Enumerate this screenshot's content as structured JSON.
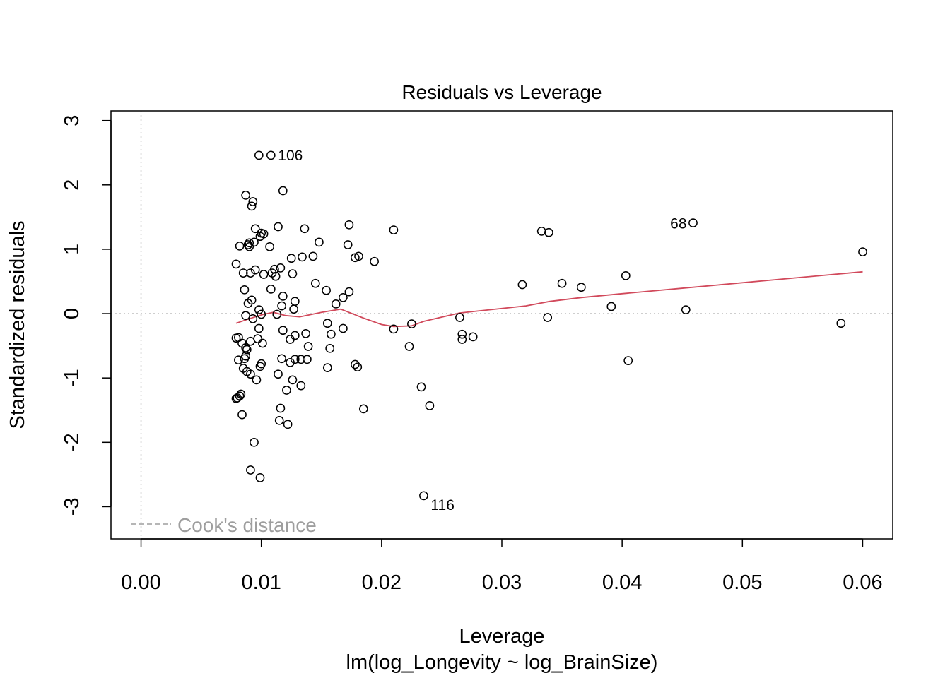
{
  "chart_data": {
    "type": "scatter",
    "title": "Residuals vs Leverage",
    "xlabel": "Leverage",
    "subtitle": "lm(log_Longevity ~ log_BrainSize)",
    "ylabel": "Standardized residuals",
    "xlim": [
      -0.0025,
      0.0625
    ],
    "ylim": [
      -3.5,
      3.15
    ],
    "x_ticks": [
      0.0,
      0.01,
      0.02,
      0.03,
      0.04,
      0.05,
      0.06
    ],
    "x_tick_labels": [
      "0.00",
      "0.01",
      "0.02",
      "0.03",
      "0.04",
      "0.05",
      "0.06"
    ],
    "y_ticks": [
      -3,
      -2,
      -1,
      0,
      1,
      2,
      3
    ],
    "y_tick_labels": [
      "-3",
      "-2",
      "-1",
      "0",
      "1",
      "2",
      "3"
    ],
    "reference_lines": {
      "h": 0,
      "v": 0,
      "style": "dotted",
      "color": "#bebebe"
    },
    "legend": {
      "text": "Cook's distance",
      "position": "bottom-left",
      "line_style": "dashed",
      "color": "#9e9e9e"
    },
    "point_color": "#000000",
    "smoother_color": "#d1495b",
    "points": [
      {
        "x": 0.0098,
        "y": 2.46
      },
      {
        "x": 0.0108,
        "y": 2.46
      },
      {
        "x": 0.0118,
        "y": 1.91
      },
      {
        "x": 0.0087,
        "y": 1.84
      },
      {
        "x": 0.0093,
        "y": 1.74
      },
      {
        "x": 0.0092,
        "y": 1.67
      },
      {
        "x": 0.0095,
        "y": 1.32
      },
      {
        "x": 0.01,
        "y": 1.25
      },
      {
        "x": 0.0102,
        "y": 1.24
      },
      {
        "x": 0.0114,
        "y": 1.35
      },
      {
        "x": 0.0136,
        "y": 1.32
      },
      {
        "x": 0.0173,
        "y": 1.38
      },
      {
        "x": 0.021,
        "y": 1.3
      },
      {
        "x": 0.0099,
        "y": 1.2
      },
      {
        "x": 0.0148,
        "y": 1.11
      },
      {
        "x": 0.0094,
        "y": 1.11
      },
      {
        "x": 0.009,
        "y": 1.1
      },
      {
        "x": 0.0089,
        "y": 1.07
      },
      {
        "x": 0.0082,
        "y": 1.05
      },
      {
        "x": 0.009,
        "y": 1.04
      },
      {
        "x": 0.0107,
        "y": 1.04
      },
      {
        "x": 0.0172,
        "y": 1.07
      },
      {
        "x": 0.0125,
        "y": 0.86
      },
      {
        "x": 0.0134,
        "y": 0.88
      },
      {
        "x": 0.0143,
        "y": 0.89
      },
      {
        "x": 0.0178,
        "y": 0.87
      },
      {
        "x": 0.0181,
        "y": 0.89
      },
      {
        "x": 0.0194,
        "y": 0.81
      },
      {
        "x": 0.0079,
        "y": 0.77
      },
      {
        "x": 0.0085,
        "y": 0.63
      },
      {
        "x": 0.0091,
        "y": 0.63
      },
      {
        "x": 0.0095,
        "y": 0.68
      },
      {
        "x": 0.0102,
        "y": 0.61
      },
      {
        "x": 0.0109,
        "y": 0.63
      },
      {
        "x": 0.0111,
        "y": 0.69
      },
      {
        "x": 0.0112,
        "y": 0.58
      },
      {
        "x": 0.0116,
        "y": 0.71
      },
      {
        "x": 0.0126,
        "y": 0.62
      },
      {
        "x": 0.0086,
        "y": 0.37
      },
      {
        "x": 0.0108,
        "y": 0.38
      },
      {
        "x": 0.0145,
        "y": 0.47
      },
      {
        "x": 0.0154,
        "y": 0.36
      },
      {
        "x": 0.0092,
        "y": 0.21
      },
      {
        "x": 0.0089,
        "y": 0.16
      },
      {
        "x": 0.0118,
        "y": 0.27
      },
      {
        "x": 0.0128,
        "y": 0.19
      },
      {
        "x": 0.0127,
        "y": 0.07
      },
      {
        "x": 0.0117,
        "y": 0.12
      },
      {
        "x": 0.0162,
        "y": 0.15
      },
      {
        "x": 0.0168,
        "y": 0.25
      },
      {
        "x": 0.0173,
        "y": 0.34
      },
      {
        "x": 0.0098,
        "y": 0.06
      },
      {
        "x": 0.01,
        "y": -0.01
      },
      {
        "x": 0.0087,
        "y": -0.03
      },
      {
        "x": 0.0113,
        "y": -0.01
      },
      {
        "x": 0.0093,
        "y": -0.08
      },
      {
        "x": 0.0317,
        "y": 0.45
      },
      {
        "x": 0.035,
        "y": 0.47
      },
      {
        "x": 0.0366,
        "y": 0.41
      },
      {
        "x": 0.0333,
        "y": 1.28
      },
      {
        "x": 0.0339,
        "y": 1.26
      },
      {
        "x": 0.0403,
        "y": 0.59
      },
      {
        "x": 0.0391,
        "y": 0.11
      },
      {
        "x": 0.0459,
        "y": 1.41
      },
      {
        "x": 0.0453,
        "y": 0.06
      },
      {
        "x": 0.06,
        "y": 0.96
      },
      {
        "x": 0.0582,
        "y": -0.15
      },
      {
        "x": 0.0338,
        "y": -0.06
      },
      {
        "x": 0.0405,
        "y": -0.73
      },
      {
        "x": 0.0265,
        "y": -0.06
      },
      {
        "x": 0.0267,
        "y": -0.32
      },
      {
        "x": 0.0267,
        "y": -0.4
      },
      {
        "x": 0.0276,
        "y": -0.36
      },
      {
        "x": 0.0225,
        "y": -0.16
      },
      {
        "x": 0.021,
        "y": -0.24
      },
      {
        "x": 0.0223,
        "y": -0.51
      },
      {
        "x": 0.0155,
        "y": -0.15
      },
      {
        "x": 0.0158,
        "y": -0.32
      },
      {
        "x": 0.0168,
        "y": -0.23
      },
      {
        "x": 0.0157,
        "y": -0.54
      },
      {
        "x": 0.0155,
        "y": -0.84
      },
      {
        "x": 0.0178,
        "y": -0.79
      },
      {
        "x": 0.018,
        "y": -0.83
      },
      {
        "x": 0.0185,
        "y": -1.48
      },
      {
        "x": 0.0233,
        "y": -1.14
      },
      {
        "x": 0.024,
        "y": -1.43
      },
      {
        "x": 0.0235,
        "y": -2.83
      },
      {
        "x": 0.0098,
        "y": -0.23
      },
      {
        "x": 0.0118,
        "y": -0.26
      },
      {
        "x": 0.0124,
        "y": -0.4
      },
      {
        "x": 0.0128,
        "y": -0.34
      },
      {
        "x": 0.0137,
        "y": -0.31
      },
      {
        "x": 0.0139,
        "y": -0.51
      },
      {
        "x": 0.0079,
        "y": -0.38
      },
      {
        "x": 0.0081,
        "y": -0.37
      },
      {
        "x": 0.0084,
        "y": -0.46
      },
      {
        "x": 0.0087,
        "y": -0.53
      },
      {
        "x": 0.0088,
        "y": -0.56
      },
      {
        "x": 0.0091,
        "y": -0.43
      },
      {
        "x": 0.0097,
        "y": -0.39
      },
      {
        "x": 0.0101,
        "y": -0.46
      },
      {
        "x": 0.0081,
        "y": -0.72
      },
      {
        "x": 0.0086,
        "y": -0.7
      },
      {
        "x": 0.0087,
        "y": -0.66
      },
      {
        "x": 0.01,
        "y": -0.78
      },
      {
        "x": 0.0099,
        "y": -0.82
      },
      {
        "x": 0.0117,
        "y": -0.7
      },
      {
        "x": 0.0124,
        "y": -0.76
      },
      {
        "x": 0.0128,
        "y": -0.71
      },
      {
        "x": 0.0133,
        "y": -0.71
      },
      {
        "x": 0.0138,
        "y": -0.71
      },
      {
        "x": 0.0085,
        "y": -0.85
      },
      {
        "x": 0.0088,
        "y": -0.9
      },
      {
        "x": 0.0091,
        "y": -0.94
      },
      {
        "x": 0.0096,
        "y": -1.03
      },
      {
        "x": 0.0114,
        "y": -0.94
      },
      {
        "x": 0.0126,
        "y": -1.03
      },
      {
        "x": 0.0133,
        "y": -1.12
      },
      {
        "x": 0.0121,
        "y": -1.19
      },
      {
        "x": 0.0083,
        "y": -1.25
      },
      {
        "x": 0.0082,
        "y": -1.28
      },
      {
        "x": 0.008,
        "y": -1.31
      },
      {
        "x": 0.0079,
        "y": -1.32
      },
      {
        "x": 0.0116,
        "y": -1.47
      },
      {
        "x": 0.0084,
        "y": -1.57
      },
      {
        "x": 0.0115,
        "y": -1.66
      },
      {
        "x": 0.0122,
        "y": -1.72
      },
      {
        "x": 0.0094,
        "y": -2.0
      },
      {
        "x": 0.0091,
        "y": -2.43
      },
      {
        "x": 0.0099,
        "y": -2.55
      }
    ],
    "point_labels": [
      {
        "text": "106",
        "x": 0.0108,
        "y": 2.46,
        "side": "right"
      },
      {
        "text": "68",
        "x": 0.0459,
        "y": 1.41,
        "side": "left"
      },
      {
        "text": "116",
        "x": 0.0235,
        "y": -2.83,
        "side": "right-below"
      }
    ],
    "smoother": [
      {
        "x": 0.0079,
        "y": -0.15
      },
      {
        "x": 0.009,
        "y": -0.08
      },
      {
        "x": 0.01,
        "y": -0.02
      },
      {
        "x": 0.011,
        "y": 0.02
      },
      {
        "x": 0.012,
        "y": -0.03
      },
      {
        "x": 0.0132,
        "y": -0.05
      },
      {
        "x": 0.015,
        "y": 0.02
      },
      {
        "x": 0.0166,
        "y": 0.07
      },
      {
        "x": 0.0185,
        "y": -0.07
      },
      {
        "x": 0.02,
        "y": -0.17
      },
      {
        "x": 0.021,
        "y": -0.2
      },
      {
        "x": 0.0225,
        "y": -0.19
      },
      {
        "x": 0.0235,
        "y": -0.12
      },
      {
        "x": 0.0265,
        "y": 0.01
      },
      {
        "x": 0.028,
        "y": 0.04
      },
      {
        "x": 0.032,
        "y": 0.12
      },
      {
        "x": 0.034,
        "y": 0.19
      },
      {
        "x": 0.0366,
        "y": 0.25
      },
      {
        "x": 0.04,
        "y": 0.31
      },
      {
        "x": 0.0459,
        "y": 0.41
      },
      {
        "x": 0.06,
        "y": 0.65
      }
    ]
  }
}
